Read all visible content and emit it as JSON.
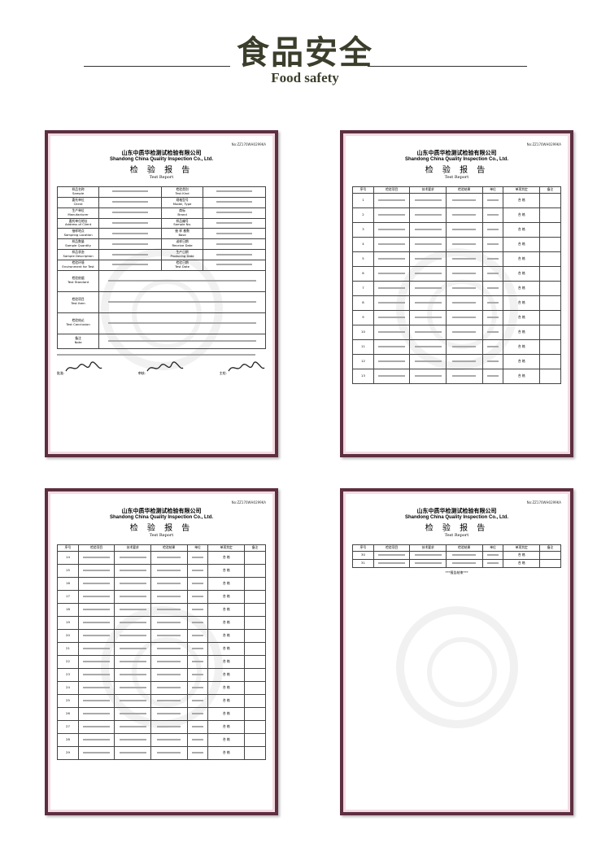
{
  "header": {
    "title_zh": "食品安全",
    "title_en": "Food safety"
  },
  "report_common": {
    "company_zh": "山东中质华检测试检验有限公司",
    "company_en": "Shandong China Quality Inspection Co., Ltd.",
    "report_zh": "检 验 报 告",
    "report_en": "Test Report",
    "report_no": "No:ZZ170WH0299KA"
  },
  "report1": {
    "fields": [
      [
        "样品名称\nSample",
        "检验类别\nTest Kind"
      ],
      [
        "委托单位\nClient",
        "规格型号\nModel, Type"
      ],
      [
        "生产单位\nManufacturer",
        "商标\nBrand"
      ],
      [
        "委托单位地址\nAddress of Client",
        "样品编号\nSample No."
      ],
      [
        "抽样地点\nSampling Location",
        "抽 样 基数\nBase"
      ],
      [
        "样品数量\nSample Quantity",
        "送样日期\nReceive Date"
      ],
      [
        "样品状态\nSample Description",
        "生产日期\nProducing Date"
      ],
      [
        "检验环境\nEnvironment for Test",
        "检验日期\nTest Date"
      ]
    ],
    "wide_fields": [
      "检验依据\nTest Standard",
      "检验项目\nTest Item",
      "检验结论\nTest Conclusion",
      "备注\nNote"
    ],
    "signature_labels": [
      "批准:",
      "审核:",
      "主检:"
    ]
  },
  "table_headers": [
    "序号",
    "检验项目",
    "技术要求",
    "检验结果",
    "单位",
    "单项判定",
    "备注"
  ],
  "judgement": "合 格",
  "report2_rows": [
    "1",
    "2",
    "3",
    "4",
    "5",
    "6",
    "7",
    "8",
    "9",
    "10",
    "11",
    "12",
    "13"
  ],
  "report3_rows": [
    "14",
    "15",
    "16",
    "17",
    "18",
    "19",
    "20",
    "21",
    "22",
    "23",
    "24",
    "25",
    "26",
    "27",
    "28",
    "29"
  ],
  "report4_rows": [
    "30",
    "31"
  ],
  "report4_end": "***报告结束***"
}
